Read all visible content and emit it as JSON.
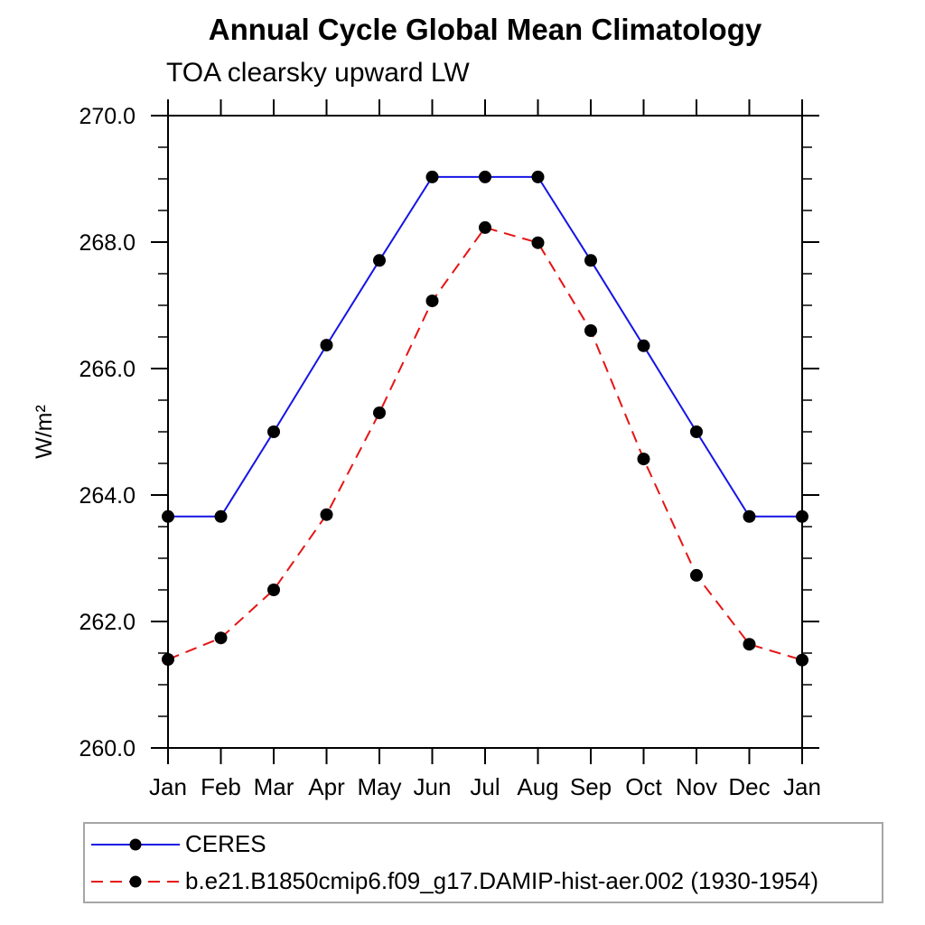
{
  "chart_data": {
    "type": "line",
    "title": "Annual Cycle Global Mean Climatology",
    "subtitle": "TOA clearsky upward LW",
    "ylabel": "W/m²",
    "xlabel": "",
    "categories": [
      "Jan",
      "Feb",
      "Mar",
      "Apr",
      "May",
      "Jun",
      "Jul",
      "Aug",
      "Sep",
      "Oct",
      "Nov",
      "Dec",
      "Jan"
    ],
    "ylim": [
      260.0,
      270.0
    ],
    "y_major_step": 2.0,
    "y_minor_step": 0.5,
    "y_tick_decimals": 1,
    "grid": false,
    "frame": true,
    "tick_direction": "out",
    "legend_position": "bottom-left box",
    "axis_color": "#000000",
    "marker_color": "#000000",
    "legend_border_color": "#a6a6a6",
    "series": [
      {
        "name": "CERES",
        "color": "#1414e6",
        "line_style": "solid",
        "marker": "filled-circle",
        "values": [
          263.66,
          263.66,
          265.0,
          266.37,
          267.71,
          269.03,
          269.03,
          269.03,
          267.71,
          266.36,
          265.0,
          263.66,
          263.66
        ]
      },
      {
        "name": "b.e21.B1850cmip6.f09_g17.DAMIP-hist-aer.002 (1930-1954)",
        "color": "#e61414",
        "line_style": "dashed",
        "marker": "filled-circle",
        "values": [
          261.4,
          261.74,
          262.5,
          263.69,
          265.3,
          267.07,
          268.23,
          267.99,
          266.6,
          264.57,
          262.73,
          261.64,
          261.39
        ]
      }
    ]
  }
}
